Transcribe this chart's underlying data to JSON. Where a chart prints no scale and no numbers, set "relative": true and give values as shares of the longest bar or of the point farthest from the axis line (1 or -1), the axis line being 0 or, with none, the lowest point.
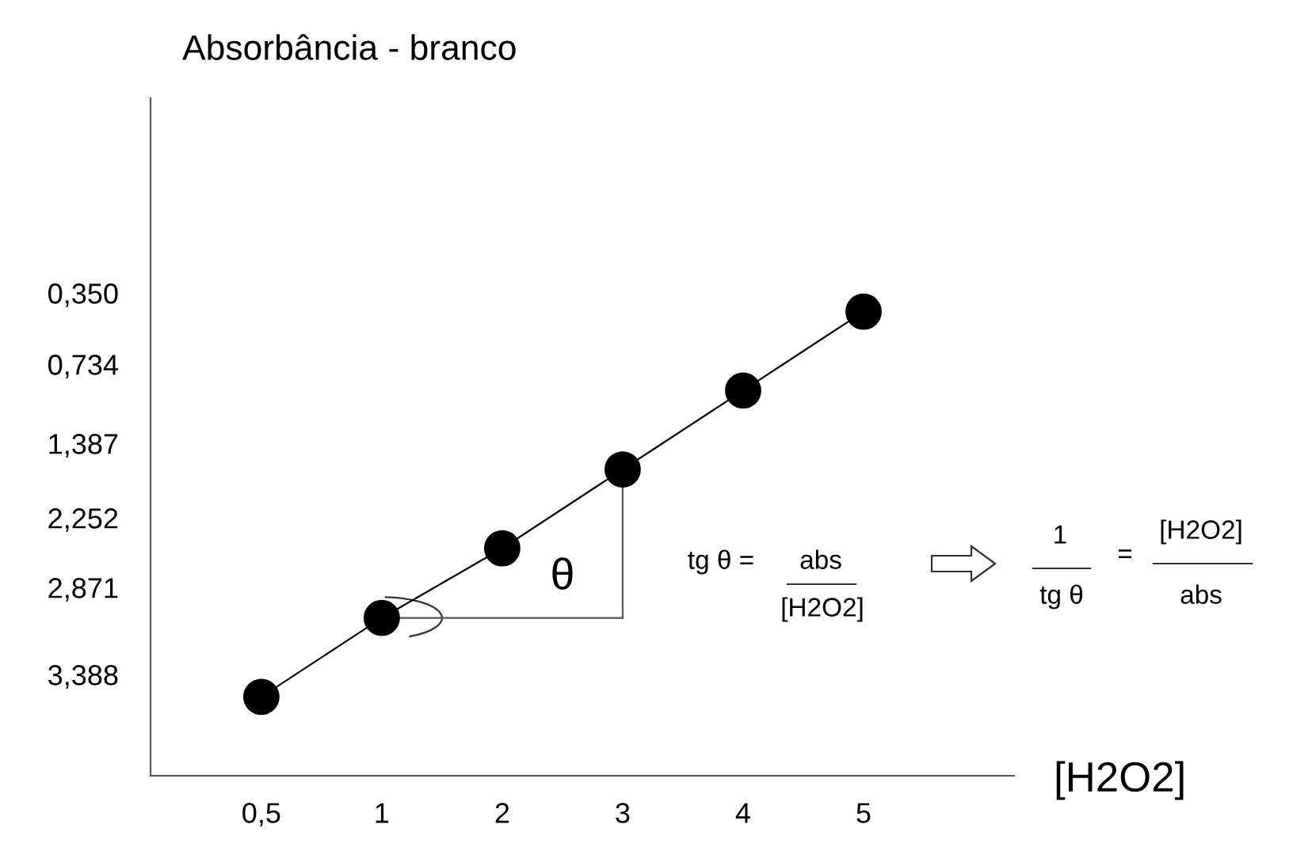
{
  "chart_data": {
    "type": "scatter",
    "title": "Absorbância - branco",
    "xlabel": "[H2O2]",
    "categories": [
      "0,5",
      "1",
      "2",
      "3",
      "4",
      "5"
    ],
    "relative": true,
    "series": [
      {
        "type": "line",
        "color": "#000000",
        "values": [
          0.17,
          0.34,
          0.49,
          0.66,
          0.83,
          1.0
        ]
      },
      {
        "color": "#000000",
        "marker": "circle",
        "values": [
          0.17,
          0.34,
          0.49,
          0.66,
          0.83,
          1.0
        ]
      }
    ],
    "annotations": [
      "θ",
      "0,350",
      "0,734",
      "1,387",
      "2,252",
      "2,871",
      "3,388",
      "tg θ =",
      "abs",
      "[H2O2]",
      "1",
      "tg θ",
      "=",
      "[H2O2]",
      "abs"
    ]
  }
}
